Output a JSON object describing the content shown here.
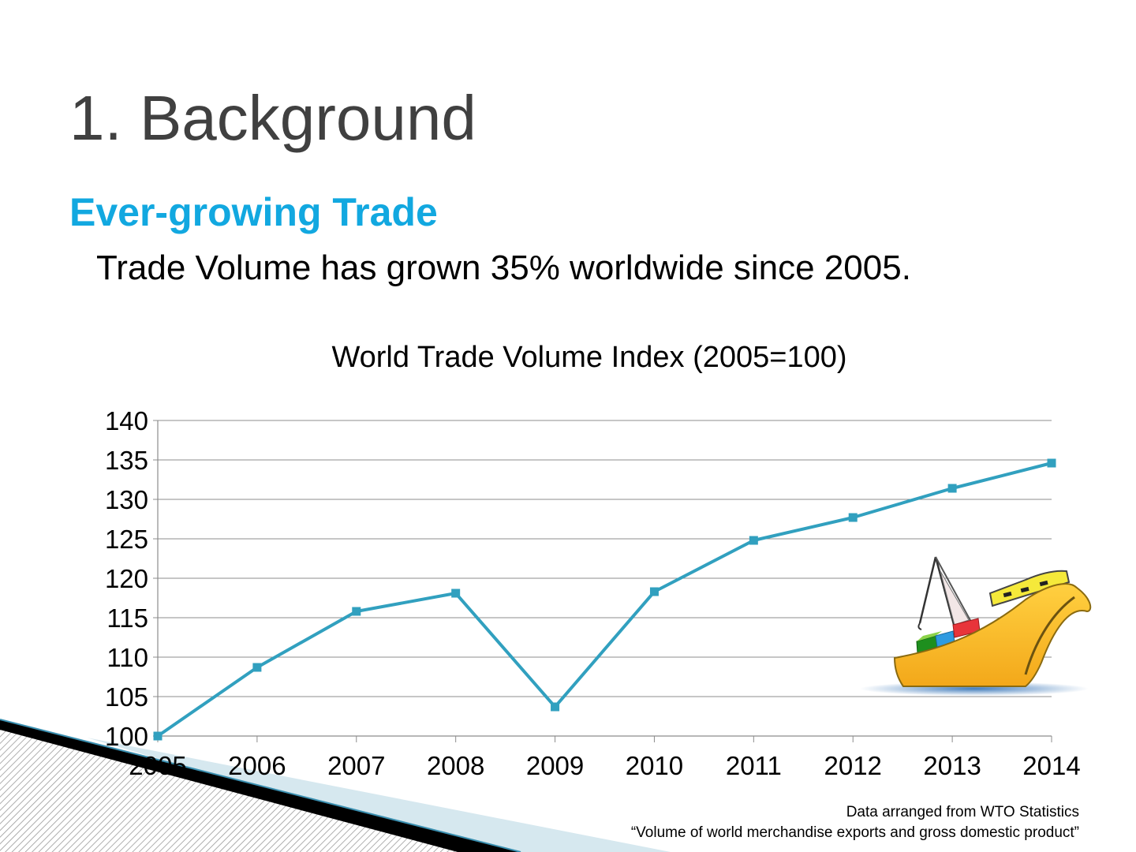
{
  "slide": {
    "title": "1. Background",
    "subtitle": "Ever-growing Trade",
    "headline": "Trade Volume has grown 35% worldwide since 2005."
  },
  "chart_data": {
    "type": "line",
    "title": "World Trade Volume Index (2005=100)",
    "xlabel": "",
    "ylabel": "",
    "categories": [
      "2005",
      "2006",
      "2007",
      "2008",
      "2009",
      "2010",
      "2011",
      "2012",
      "2013",
      "2014"
    ],
    "series": [
      {
        "values": [
          100,
          108.7,
          115.8,
          118.1,
          103.7,
          118.3,
          124.8,
          127.7,
          131.4,
          134.6
        ]
      }
    ],
    "ylim": [
      100,
      140
    ],
    "ytick_step": 5,
    "grid": true,
    "legend": "none",
    "marker": "square",
    "line_color": "#31A0BF"
  },
  "source": {
    "line1": "Data arranged from WTO Statistics",
    "line2": "“Volume of world merchandise exports and gross domestic product”"
  },
  "decor": {
    "illustration": "cargo-ship-illustration",
    "corner": "corner-stripe-graphic"
  }
}
